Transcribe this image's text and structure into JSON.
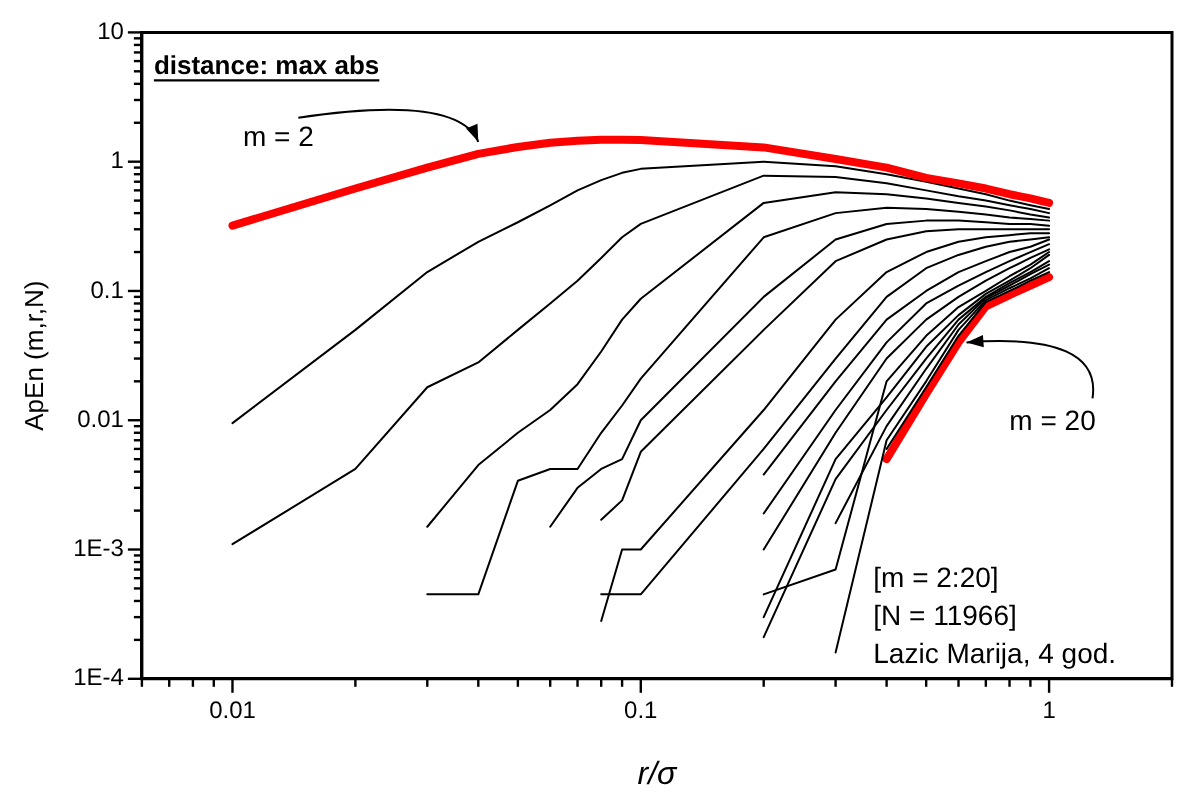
{
  "chart_data": {
    "type": "line",
    "title": "distance: max abs",
    "xlabel": "r/σ",
    "ylabel": "ApEn (m,r,N)",
    "log": "xy",
    "grid": false,
    "legend": false,
    "marker": "none",
    "line_style": "solid",
    "xlim": [
      0.006,
      2
    ],
    "ylim": [
      0.0001,
      10
    ],
    "xticks": [
      {
        "value": 0.006,
        "label": null
      },
      {
        "value": 0.007,
        "label": null
      },
      {
        "value": 0.008,
        "label": null
      },
      {
        "value": 0.009,
        "label": null
      },
      0.01,
      {
        "value": 0.02,
        "label": null
      },
      {
        "value": 0.03,
        "label": null
      },
      {
        "value": 0.04,
        "label": null
      },
      {
        "value": 0.05,
        "label": null
      },
      {
        "value": 0.06,
        "label": null
      },
      {
        "value": 0.07,
        "label": null
      },
      {
        "value": 0.08,
        "label": null
      },
      {
        "value": 0.09,
        "label": null
      },
      0.1,
      {
        "value": 0.2,
        "label": null
      },
      {
        "value": 0.3,
        "label": null
      },
      {
        "value": 0.4,
        "label": null
      },
      {
        "value": 0.5,
        "label": null
      },
      {
        "value": 0.6,
        "label": null
      },
      {
        "value": 0.7,
        "label": null
      },
      {
        "value": 0.8,
        "label": null
      },
      {
        "value": 0.9,
        "label": null
      },
      1,
      {
        "value": 2,
        "label": null
      }
    ],
    "yticks": [
      {
        "value": 0.0001,
        "label": "1E-4"
      },
      {
        "value": 0.0002,
        "label": null
      },
      {
        "value": 0.0003,
        "label": null
      },
      {
        "value": 0.0004,
        "label": null
      },
      {
        "value": 0.0005,
        "label": null
      },
      {
        "value": 0.0006,
        "label": null
      },
      {
        "value": 0.0007,
        "label": null
      },
      {
        "value": 0.0008,
        "label": null
      },
      {
        "value": 0.0009,
        "label": null
      },
      {
        "value": 0.001,
        "label": "1E-3"
      },
      {
        "value": 0.002,
        "label": null
      },
      {
        "value": 0.003,
        "label": null
      },
      {
        "value": 0.004,
        "label": null
      },
      {
        "value": 0.005,
        "label": null
      },
      {
        "value": 0.006,
        "label": null
      },
      {
        "value": 0.007,
        "label": null
      },
      {
        "value": 0.008,
        "label": null
      },
      {
        "value": 0.009,
        "label": null
      },
      0.01,
      {
        "value": 0.02,
        "label": null
      },
      {
        "value": 0.03,
        "label": null
      },
      {
        "value": 0.04,
        "label": null
      },
      {
        "value": 0.05,
        "label": null
      },
      {
        "value": 0.06,
        "label": null
      },
      {
        "value": 0.07,
        "label": null
      },
      {
        "value": 0.08,
        "label": null
      },
      {
        "value": 0.09,
        "label": null
      },
      0.1,
      {
        "value": 0.2,
        "label": null
      },
      {
        "value": 0.3,
        "label": null
      },
      {
        "value": 0.4,
        "label": null
      },
      {
        "value": 0.5,
        "label": null
      },
      {
        "value": 0.6,
        "label": null
      },
      {
        "value": 0.7,
        "label": null
      },
      {
        "value": 0.8,
        "label": null
      },
      {
        "value": 0.9,
        "label": null
      },
      1,
      {
        "value": 2,
        "label": null
      },
      {
        "value": 3,
        "label": null
      },
      {
        "value": 4,
        "label": null
      },
      {
        "value": 5,
        "label": null
      },
      {
        "value": 6,
        "label": null
      },
      {
        "value": 7,
        "label": null
      },
      {
        "value": 8,
        "label": null
      },
      {
        "value": 9,
        "label": null
      },
      10
    ],
    "x": [
      0.01,
      0.02,
      0.03,
      0.04,
      0.05,
      0.06,
      0.07,
      0.08,
      0.09,
      0.1,
      0.2,
      0.3,
      0.4,
      0.5,
      0.6,
      0.7,
      0.8,
      0.9,
      1
    ],
    "series": [
      {
        "color": "#ff0000",
        "values": [
          0.32,
          0.62,
          0.9,
          1.15,
          1.3,
          1.4,
          1.45,
          1.48,
          1.48,
          1.47,
          1.29,
          1.05,
          0.9,
          0.75,
          0.68,
          0.62,
          0.56,
          0.52,
          0.48
        ]
      },
      {
        "color": "#000000",
        "values": [
          0.0095,
          0.05,
          0.14,
          0.24,
          0.34,
          0.46,
          0.6,
          0.72,
          0.82,
          0.88,
          1.0,
          0.92,
          0.8,
          0.7,
          0.62,
          0.56,
          0.5,
          0.46,
          0.43
        ]
      },
      {
        "color": "#000000",
        "values": [
          0.0011,
          0.0042,
          0.018,
          0.028,
          0.05,
          0.08,
          0.12,
          0.18,
          0.26,
          0.33,
          0.78,
          0.76,
          0.68,
          0.6,
          0.54,
          0.5,
          0.46,
          0.43,
          0.4
        ]
      },
      {
        "color": "#000000",
        "values": [
          null,
          null,
          0.0015,
          0.0045,
          0.008,
          0.012,
          0.019,
          0.034,
          0.06,
          0.087,
          0.48,
          0.58,
          0.56,
          0.52,
          0.48,
          0.45,
          0.42,
          0.39,
          0.37
        ]
      },
      {
        "color": "#000000",
        "values": [
          null,
          null,
          0.00045,
          0.00045,
          0.0034,
          0.0042,
          0.0042,
          0.008,
          0.013,
          0.021,
          0.26,
          0.4,
          0.44,
          0.43,
          0.41,
          0.39,
          0.37,
          0.36,
          0.35
        ]
      },
      {
        "color": "#000000",
        "values": [
          null,
          null,
          null,
          null,
          null,
          0.0015,
          0.003,
          0.0042,
          0.005,
          0.01,
          0.09,
          0.25,
          0.33,
          0.35,
          0.35,
          0.34,
          0.33,
          0.33,
          0.32
        ]
      },
      {
        "color": "#000000",
        "values": [
          null,
          null,
          null,
          null,
          null,
          null,
          null,
          0.0017,
          0.0024,
          0.0057,
          0.05,
          0.17,
          0.25,
          0.29,
          0.3,
          0.3,
          0.3,
          0.3,
          0.3
        ]
      },
      {
        "color": "#000000",
        "values": [
          null,
          null,
          null,
          null,
          null,
          null,
          null,
          0.00028,
          0.001,
          0.001,
          0.012,
          0.06,
          0.14,
          0.2,
          0.24,
          0.26,
          0.27,
          0.28,
          0.28
        ]
      },
      {
        "color": "#000000",
        "values": [
          null,
          null,
          null,
          null,
          null,
          null,
          null,
          0.00045,
          0.00045,
          0.00045,
          0.006,
          0.03,
          0.09,
          0.15,
          0.19,
          0.22,
          0.24,
          0.25,
          0.26
        ]
      },
      {
        "color": "#000000",
        "values": [
          null,
          null,
          null,
          null,
          null,
          null,
          null,
          null,
          null,
          null,
          0.0038,
          0.02,
          0.06,
          0.1,
          0.14,
          0.17,
          0.2,
          0.22,
          0.25
        ]
      },
      {
        "color": "#000000",
        "values": [
          null,
          null,
          null,
          null,
          null,
          null,
          null,
          null,
          null,
          null,
          0.0019,
          0.012,
          0.04,
          0.08,
          0.11,
          0.14,
          0.17,
          0.2,
          0.23
        ]
      },
      {
        "color": "#000000",
        "values": [
          null,
          null,
          null,
          null,
          null,
          null,
          null,
          null,
          null,
          null,
          0.001,
          0.008,
          0.03,
          0.06,
          0.09,
          0.12,
          0.15,
          0.18,
          0.21
        ]
      },
      {
        "color": "#000000",
        "values": [
          null,
          null,
          null,
          null,
          null,
          null,
          null,
          null,
          null,
          null,
          0.00045,
          0.0007,
          0.02,
          0.045,
          0.075,
          0.1,
          0.13,
          0.16,
          0.2
        ]
      },
      {
        "color": "#000000",
        "values": [
          null,
          null,
          null,
          null,
          null,
          null,
          null,
          null,
          null,
          null,
          0.0003,
          0.005,
          0.015,
          0.037,
          0.065,
          0.095,
          0.12,
          0.15,
          0.19
        ]
      },
      {
        "color": "#000000",
        "values": [
          null,
          null,
          null,
          null,
          null,
          null,
          null,
          null,
          null,
          null,
          0.00021,
          0.0035,
          0.012,
          0.03,
          0.06,
          0.09,
          0.115,
          0.14,
          0.17
        ]
      },
      {
        "color": "#000000",
        "values": [
          null,
          null,
          null,
          null,
          null,
          null,
          null,
          null,
          null,
          null,
          null,
          0.0016,
          0.009,
          0.025,
          0.055,
          0.088,
          0.11,
          0.135,
          0.16
        ]
      },
      {
        "color": "#000000",
        "values": [
          null,
          null,
          null,
          null,
          null,
          null,
          null,
          null,
          null,
          null,
          null,
          0.00016,
          0.007,
          0.02,
          0.05,
          0.085,
          0.105,
          0.125,
          0.15
        ]
      },
      {
        "color": "#000000",
        "values": [
          null,
          null,
          null,
          null,
          null,
          null,
          null,
          null,
          null,
          null,
          null,
          null,
          0.006,
          0.018,
          0.045,
          0.082,
          0.1,
          0.12,
          0.14
        ]
      },
      {
        "color": "#ff0000",
        "values": [
          null,
          null,
          null,
          null,
          null,
          null,
          null,
          null,
          null,
          null,
          null,
          null,
          0.005,
          0.016,
          0.04,
          0.076,
          0.093,
          0.11,
          0.128
        ]
      }
    ],
    "annotations": [
      {
        "text": "m = 2",
        "x": 0.04,
        "y": 1.15
      },
      {
        "text": "m = 20",
        "x": 0.6,
        "y": 0.04
      },
      "[m = 2:20]",
      "[N = 11966]",
      "Lazic Marija, 4 god."
    ]
  }
}
